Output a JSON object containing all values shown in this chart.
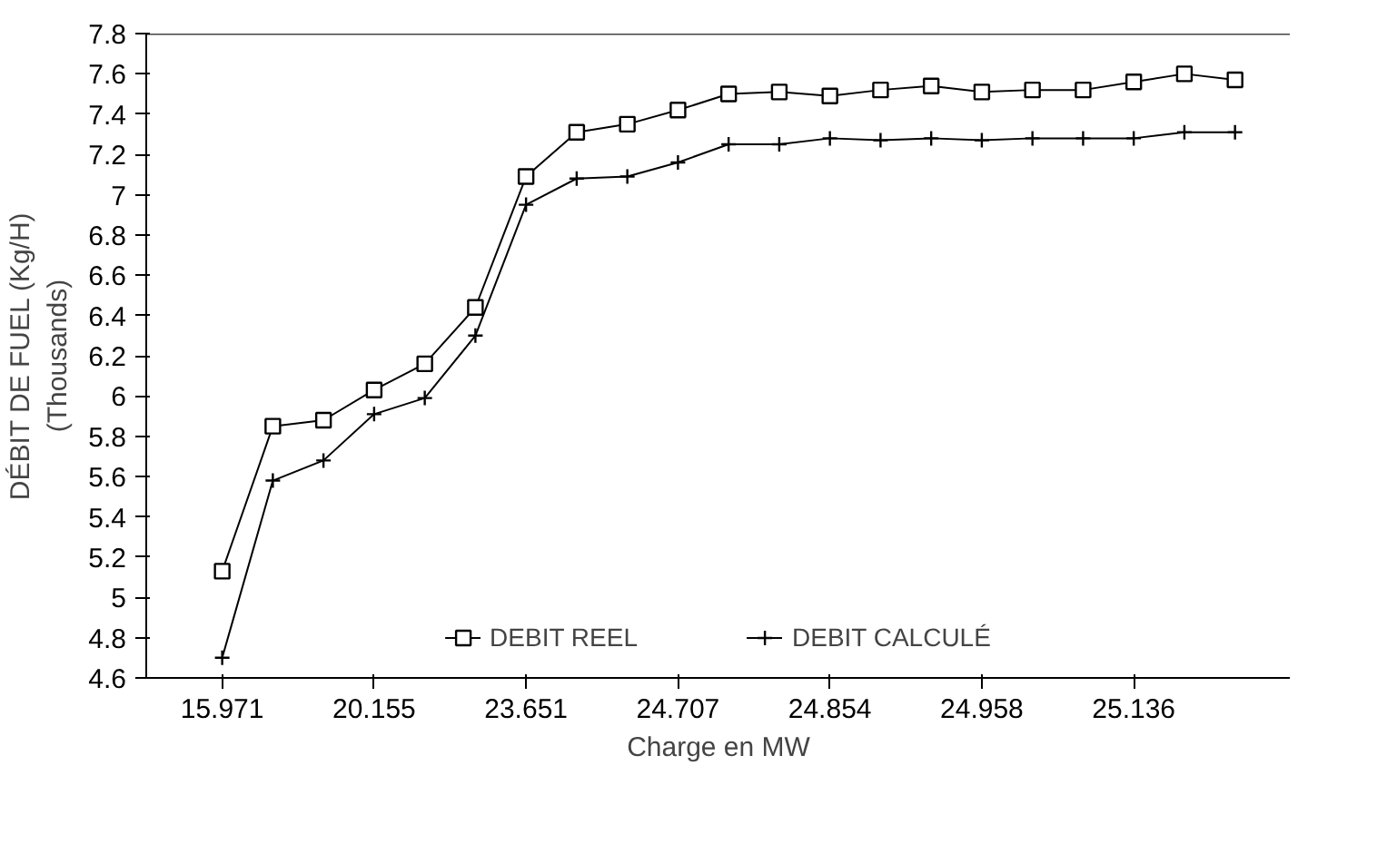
{
  "chart_data": {
    "type": "line",
    "xlabel": "Charge en MW",
    "ylabel": "DÉBIT DE FUEL (Kg/H)\n(Thousands)",
    "categories": [
      "15.971",
      null,
      null,
      "20.155",
      null,
      null,
      "23.651",
      null,
      null,
      "24.707",
      null,
      null,
      "24.854",
      null,
      null,
      "24.958",
      null,
      null,
      "25.136",
      null,
      null
    ],
    "series": [
      {
        "name": "DEBIT REEL",
        "color": "#000000",
        "marker": "square",
        "values": [
          5.13,
          5.85,
          5.88,
          6.03,
          6.16,
          6.44,
          7.09,
          7.31,
          7.35,
          7.42,
          7.5,
          7.51,
          7.49,
          7.52,
          7.54,
          7.51,
          7.52,
          7.52,
          7.56,
          7.6,
          7.57
        ]
      },
      {
        "name": "DEBIT CALCULÉ",
        "color": "#000000",
        "marker": "cross",
        "values": [
          4.7,
          5.58,
          5.68,
          5.91,
          5.99,
          6.3,
          6.95,
          7.08,
          7.09,
          7.16,
          7.25,
          7.25,
          7.28,
          7.27,
          7.28,
          7.27,
          7.28,
          7.28,
          7.28,
          7.31,
          7.31
        ]
      }
    ],
    "ylim": [
      4.6,
      7.8
    ],
    "yticks": [
      4.6,
      4.8,
      5,
      5.2,
      5.4,
      5.6,
      5.8,
      6,
      6.2,
      6.4,
      6.6,
      6.8,
      7,
      7.2,
      7.4,
      7.6,
      7.8
    ],
    "grid": false,
    "legend": "bottom",
    "line_style": "solid"
  }
}
